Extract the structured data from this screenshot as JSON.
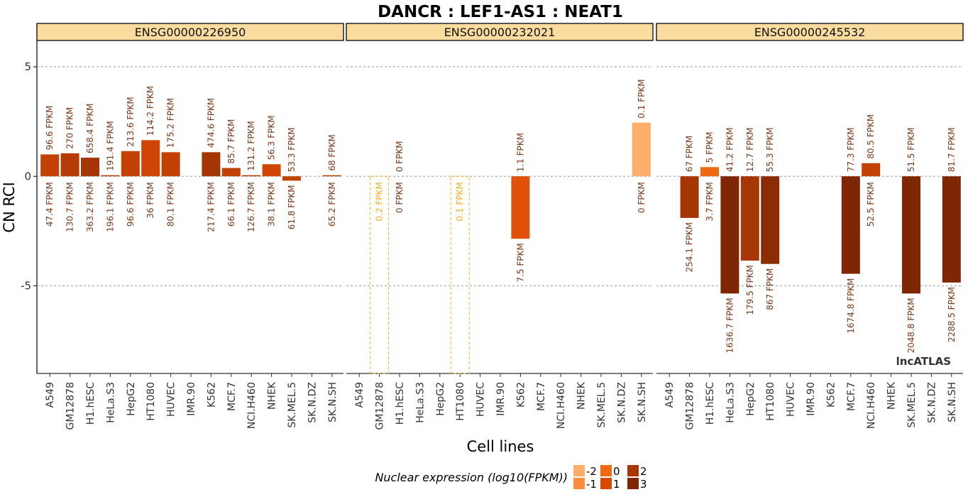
{
  "chart_data": {
    "type": "bar",
    "title": "DANCR : LEF1-AS1 : NEAT1",
    "xlabel": "Cell lines",
    "ylabel": "CN RCI",
    "ylim": [
      -9,
      6.2
    ],
    "yticks": [
      5,
      0,
      -5
    ],
    "grid": true,
    "watermark": "lncATLAS",
    "categories": [
      "A549",
      "GM12878",
      "H1.hESC",
      "HeLa.S3",
      "HepG2",
      "HT1080",
      "HUVEC",
      "IMR.90",
      "K562",
      "MCF.7",
      "NCI.H460",
      "NHEK",
      "SK.MEL.5",
      "SK.N.DZ",
      "SK.N.SH"
    ],
    "legend": {
      "title": "Nuclear expression (log10(FPKM))",
      "position": "bottom",
      "items": [
        {
          "label": "-2",
          "color": "#FDAE6B"
        },
        {
          "label": "-1",
          "color": "#FD8D3C"
        },
        {
          "label": "0",
          "color": "#F16913"
        },
        {
          "label": "1",
          "color": "#D94801"
        },
        {
          "label": "2",
          "color": "#A63603"
        },
        {
          "label": "3",
          "color": "#7F2704"
        }
      ]
    },
    "panels": [
      {
        "name": "ENSG00000226950",
        "bars": [
          {
            "cell": "A549",
            "value": 1.0,
            "color": "#C44106",
            "top": "96.6 FPKM",
            "bottom": "47.4 FPKM"
          },
          {
            "cell": "GM12878",
            "value": 1.05,
            "color": "#B53C05",
            "top": "270 FPKM",
            "bottom": "130.7 FPKM"
          },
          {
            "cell": "H1.hESC",
            "value": 0.85,
            "color": "#A33604",
            "top": "658.4 FPKM",
            "bottom": "363.2 FPKM"
          },
          {
            "cell": "HeLa.S3",
            "value": 0.05,
            "color": "#B53C05",
            "top": "191.4 FPKM",
            "bottom": "196.1 FPKM"
          },
          {
            "cell": "HepG2",
            "value": 1.15,
            "color": "#C44106",
            "top": "213.6 FPKM",
            "bottom": "96.6 FPKM"
          },
          {
            "cell": "HT1080",
            "value": 1.65,
            "color": "#D04504",
            "top": "114.2 FPKM",
            "bottom": "36 FPKM"
          },
          {
            "cell": "HUVEC",
            "value": 1.1,
            "color": "#C44106",
            "top": "175.2 FPKM",
            "bottom": "80.1 FPKM"
          },
          {
            "cell": "IMR.90",
            "value": null,
            "color": "",
            "top": "",
            "bottom": ""
          },
          {
            "cell": "K562",
            "value": 1.1,
            "color": "#A33604",
            "top": "474.6 FPKM",
            "bottom": "217.4 FPKM"
          },
          {
            "cell": "MCF.7",
            "value": 0.38,
            "color": "#C44106",
            "top": "85.7 FPKM",
            "bottom": "66.1 FPKM"
          },
          {
            "cell": "NCI.H460",
            "value": 0.05,
            "color": "#B53C05",
            "top": "131.2 FPKM",
            "bottom": "126.7 FPKM"
          },
          {
            "cell": "NHEK",
            "value": 0.55,
            "color": "#D04504",
            "top": "56.3 FPKM",
            "bottom": "38.1 FPKM"
          },
          {
            "cell": "SK.MEL.5",
            "value": -0.2,
            "color": "#C44106",
            "top": "53.3 FPKM",
            "bottom": "61.8 FPKM"
          },
          {
            "cell": "SK.N.DZ",
            "value": null,
            "color": "",
            "top": "",
            "bottom": ""
          },
          {
            "cell": "SK.N.SH",
            "value": 0.05,
            "color": "#C44106",
            "top": "68 FPKM",
            "bottom": "65.2 FPKM"
          }
        ]
      },
      {
        "name": "ENSG00000232021",
        "bars": [
          {
            "cell": "A549",
            "value": null,
            "color": "",
            "top": "",
            "bottom": ""
          },
          {
            "cell": "GM12878",
            "value": -9,
            "color": "#F0B020",
            "dashed": true,
            "top": "",
            "bottom": "0.2 FPKM"
          },
          {
            "cell": "H1.hESC",
            "value": 0,
            "color": "",
            "top": "0 FPKM",
            "bottom": "0 FPKM"
          },
          {
            "cell": "HeLa.S3",
            "value": null,
            "color": "",
            "top": "",
            "bottom": ""
          },
          {
            "cell": "HepG2",
            "value": null,
            "color": "",
            "top": "",
            "bottom": ""
          },
          {
            "cell": "HT1080",
            "value": -9,
            "color": "#F0B020",
            "dashed": true,
            "top": "",
            "bottom": "0.1 FPKM"
          },
          {
            "cell": "HUVEC",
            "value": null,
            "color": "",
            "top": "",
            "bottom": ""
          },
          {
            "cell": "IMR.90",
            "value": null,
            "color": "",
            "top": "",
            "bottom": ""
          },
          {
            "cell": "K562",
            "value": -2.85,
            "color": "#E0520A",
            "top": "1.1 FPKM",
            "bottom": "7.5 FPKM"
          },
          {
            "cell": "MCF.7",
            "value": null,
            "color": "",
            "top": "",
            "bottom": ""
          },
          {
            "cell": "NCI.H460",
            "value": null,
            "color": "",
            "top": "",
            "bottom": ""
          },
          {
            "cell": "NHEK",
            "value": null,
            "color": "",
            "top": "",
            "bottom": ""
          },
          {
            "cell": "SK.MEL.5",
            "value": null,
            "color": "",
            "top": "",
            "bottom": ""
          },
          {
            "cell": "SK.N.DZ",
            "value": null,
            "color": "",
            "top": "",
            "bottom": ""
          },
          {
            "cell": "SK.N.SH",
            "value": 2.45,
            "color": "#FDAE6B",
            "top": "0.1 FPKM",
            "bottom": "0 FPKM"
          }
        ]
      },
      {
        "name": "ENSG00000245532",
        "bars": [
          {
            "cell": "A549",
            "value": null,
            "color": "",
            "top": "",
            "bottom": ""
          },
          {
            "cell": "GM12878",
            "value": -1.9,
            "color": "#A63603",
            "top": "67 FPKM",
            "bottom": "254.1 FPKM"
          },
          {
            "cell": "H1.hESC",
            "value": 0.42,
            "color": "#F16913",
            "top": "5 FPKM",
            "bottom": "3.7 FPKM"
          },
          {
            "cell": "HeLa.S3",
            "value": -5.35,
            "color": "#7F2704",
            "top": "41.2 FPKM",
            "bottom": "1636.7 FPKM"
          },
          {
            "cell": "HepG2",
            "value": -3.85,
            "color": "#A63603",
            "top": "12.7 FPKM",
            "bottom": "179.5 FPKM"
          },
          {
            "cell": "HT1080",
            "value": -4.0,
            "color": "#8B2D04",
            "top": "55.3 FPKM",
            "bottom": "867 FPKM"
          },
          {
            "cell": "HUVEC",
            "value": null,
            "color": "",
            "top": "",
            "bottom": ""
          },
          {
            "cell": "IMR.90",
            "value": null,
            "color": "",
            "top": "",
            "bottom": ""
          },
          {
            "cell": "K562",
            "value": null,
            "color": "",
            "top": "",
            "bottom": ""
          },
          {
            "cell": "MCF.7",
            "value": -4.45,
            "color": "#7F2704",
            "top": "77.3 FPKM",
            "bottom": "1674.8 FPKM"
          },
          {
            "cell": "NCI.H460",
            "value": 0.6,
            "color": "#C44106",
            "top": "80.5 FPKM",
            "bottom": "52.5 FPKM"
          },
          {
            "cell": "NHEK",
            "value": null,
            "color": "",
            "top": "",
            "bottom": ""
          },
          {
            "cell": "SK.MEL.5",
            "value": -5.35,
            "color": "#7F2704",
            "top": "51.5 FPKM",
            "bottom": "2048.8 FPKM"
          },
          {
            "cell": "SK.N.DZ",
            "value": null,
            "color": "",
            "top": "",
            "bottom": ""
          },
          {
            "cell": "SK.N.SH",
            "value": -4.85,
            "color": "#7F2704",
            "top": "81.7 FPKM",
            "bottom": "2288.5 FPKM"
          }
        ]
      }
    ]
  }
}
